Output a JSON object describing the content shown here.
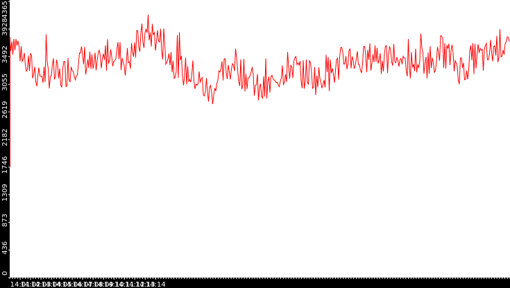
{
  "chart_data": {
    "type": "line",
    "title": "",
    "xlabel": "",
    "ylabel": "",
    "xlim": [
      14.0,
      14.8
    ],
    "ylim": [
      0,
      4365
    ],
    "yticks": [
      {
        "value": 0,
        "label": "0"
      },
      {
        "value": 436,
        "label": "436"
      },
      {
        "value": 873,
        "label": "873"
      },
      {
        "value": 1309,
        "label": "1309"
      },
      {
        "value": 1746,
        "label": "1746"
      },
      {
        "value": 2182,
        "label": "2182"
      },
      {
        "value": 2619,
        "label": "2619"
      },
      {
        "value": 3055,
        "label": "3055"
      },
      {
        "value": 3492,
        "label": "3492"
      },
      {
        "value": 3928,
        "label": "3928"
      },
      {
        "value": 4365,
        "label": "4365"
      }
    ],
    "xticks": [
      {
        "value": 14.016667,
        "label": "14:01"
      },
      {
        "value": 14.033333,
        "label": "14:02"
      },
      {
        "value": 14.05,
        "label": "14:03"
      },
      {
        "value": 14.066667,
        "label": "14:04"
      },
      {
        "value": 14.083333,
        "label": "14:05"
      },
      {
        "value": 14.1,
        "label": "14:06"
      },
      {
        "value": 14.116667,
        "label": "14:07"
      },
      {
        "value": 14.133333,
        "label": "14:08"
      },
      {
        "value": 14.15,
        "label": "14:09"
      },
      {
        "value": 14.166667,
        "label": "14:10"
      },
      {
        "value": 14.183333,
        "label": "14:11"
      },
      {
        "value": 14.2,
        "label": "14:12"
      },
      {
        "value": 14.216667,
        "label": "14:13"
      },
      {
        "value": 14.233333,
        "label": "14:14"
      }
    ],
    "grid": false,
    "legend": "none",
    "series": [
      {
        "color": "#ff0000",
        "x": [
          "14:00:00",
          "14:00:15",
          "14:00:30",
          "14:00:45",
          "14:01:00",
          "14:01:15",
          "14:01:30",
          "14:01:45",
          "14:02:00",
          "14:02:15",
          "14:02:30",
          "14:02:45",
          "14:03:00",
          "14:03:15",
          "14:03:30",
          "14:03:45",
          "14:04:00",
          "14:04:15",
          "14:04:30",
          "14:04:45",
          "14:05:00",
          "14:05:15",
          "14:05:30",
          "14:05:45",
          "14:06:00",
          "14:06:15",
          "14:06:30",
          "14:06:45",
          "14:07:00",
          "14:07:15",
          "14:07:30",
          "14:07:45",
          "14:08:00",
          "14:08:15",
          "14:08:30",
          "14:08:45",
          "14:09:00",
          "14:09:15",
          "14:09:30",
          "14:09:45",
          "14:10:00",
          "14:10:15",
          "14:10:30",
          "14:10:45",
          "14:11:00",
          "14:11:15",
          "14:11:30",
          "14:11:45",
          "14:12:00",
          "14:12:15",
          "14:12:30",
          "14:12:45",
          "14:13:00",
          "14:13:15",
          "14:13:30",
          "14:13:45",
          "14:14:00",
          "14:14:15",
          "14:14:30",
          "14:14:45",
          "14:15:00"
        ],
        "values": [
          3800,
          3650,
          3400,
          3250,
          3200,
          3250,
          3150,
          3300,
          3400,
          3450,
          3300,
          3350,
          3600,
          3550,
          3400,
          3600,
          3800,
          3850,
          3750,
          3550,
          3350,
          3250,
          3200,
          3050,
          2900,
          3100,
          3300,
          3400,
          3200,
          3150,
          2900,
          3000,
          3150,
          3300,
          3350,
          3200,
          3250,
          3100,
          3300,
          3250,
          3450,
          3500,
          3400,
          3450,
          3550,
          3400,
          3500,
          3450,
          3350,
          3450,
          3400,
          3500,
          3600,
          3450,
          3300,
          3400,
          3500,
          3450,
          3600,
          3700,
          3650
        ]
      }
    ]
  }
}
